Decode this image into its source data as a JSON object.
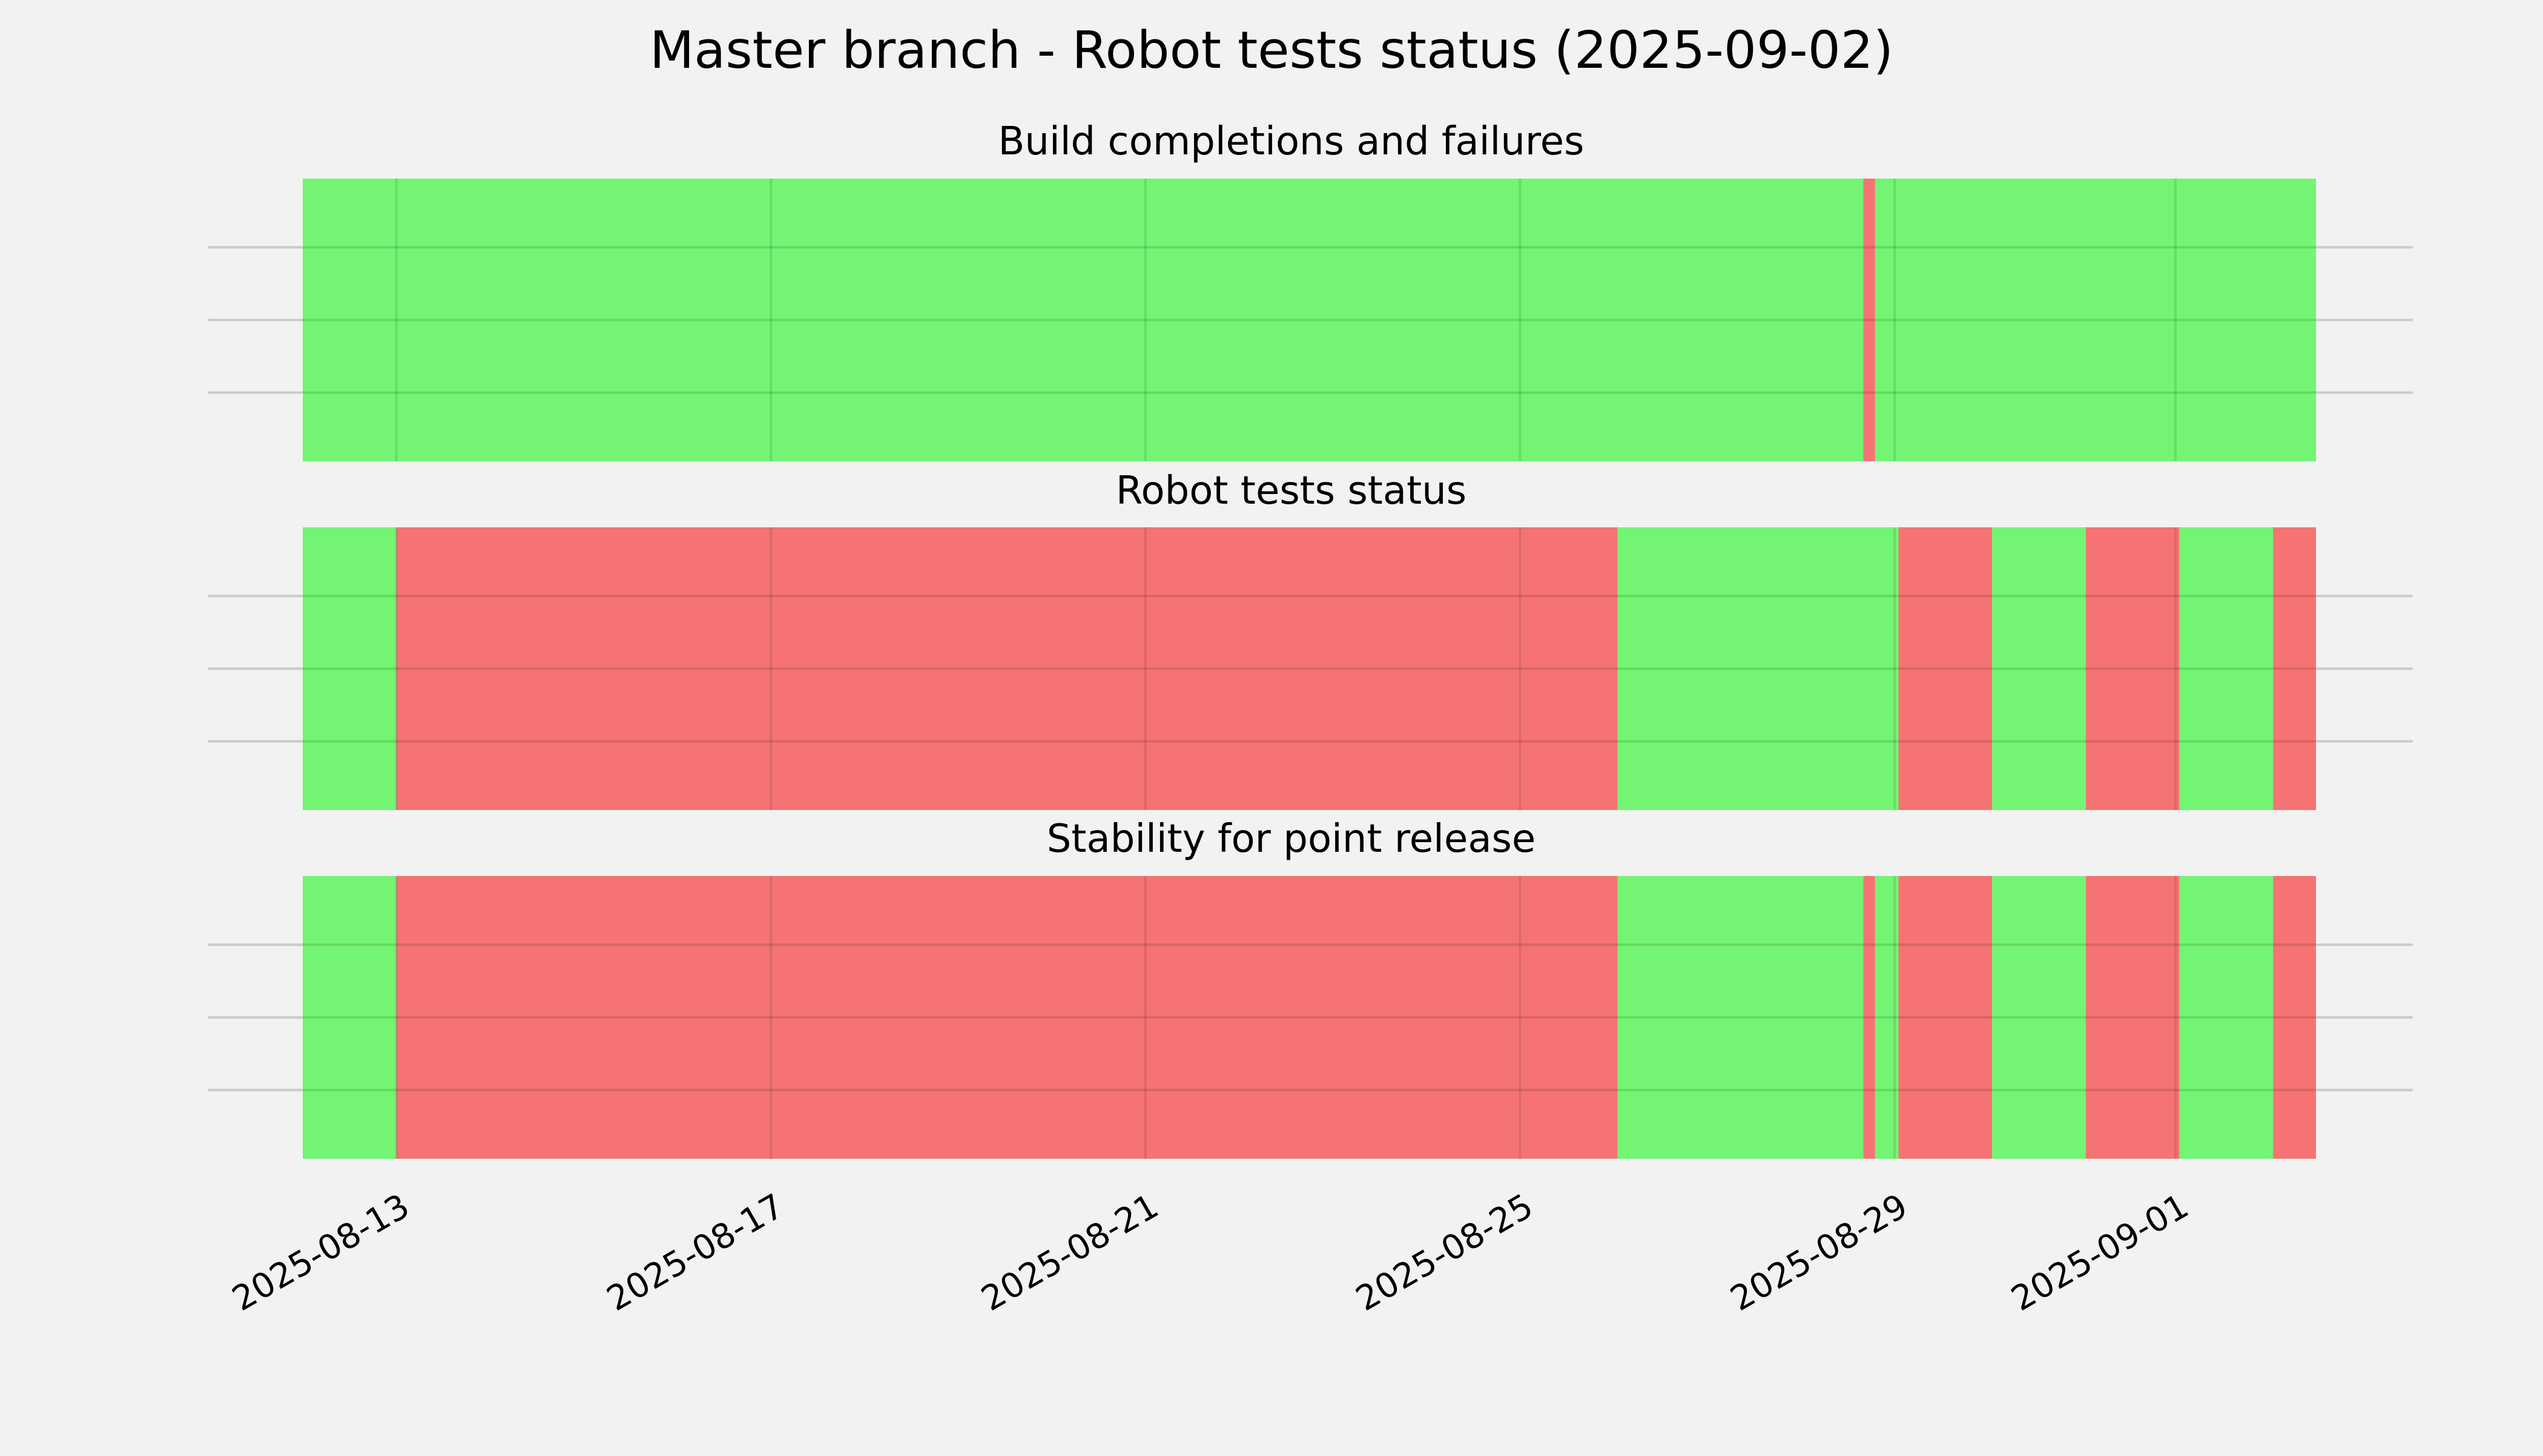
{
  "chart_data": {
    "type": "timeline",
    "title": "Master branch - Robot tests status (2025-09-02)",
    "colors": {
      "pass": "#73f573",
      "fail": "#f57373",
      "background": "#f2f2f2",
      "grid": "#cbcbcb"
    },
    "x_axis": {
      "range": [
        "2025-08-12 00:00",
        "2025-09-02 12:00"
      ],
      "ticks": [
        "2025-08-13",
        "2025-08-17",
        "2025-08-21",
        "2025-08-25",
        "2025-08-29",
        "2025-09-01"
      ],
      "tick_rotation": 30,
      "grid": true
    },
    "y_axis": {
      "ticks_visible": false,
      "grid": true
    },
    "panels": [
      {
        "title": "Build completions and failures",
        "segments": [
          {
            "start": "2025-08-12 00:00",
            "end": "2025-08-28 16:00",
            "status": "pass"
          },
          {
            "start": "2025-08-28 16:00",
            "end": "2025-08-28 19:00",
            "status": "fail"
          },
          {
            "start": "2025-08-28 19:00",
            "end": "2025-09-02 12:00",
            "status": "pass"
          }
        ]
      },
      {
        "title": "Robot tests status",
        "segments": [
          {
            "start": "2025-08-12 00:00",
            "end": "2025-08-13 00:00",
            "status": "pass"
          },
          {
            "start": "2025-08-13 00:00",
            "end": "2025-08-26 01:00",
            "status": "fail"
          },
          {
            "start": "2025-08-26 01:00",
            "end": "2025-08-29 01:00",
            "status": "pass"
          },
          {
            "start": "2025-08-29 01:00",
            "end": "2025-08-30 01:00",
            "status": "fail"
          },
          {
            "start": "2025-08-30 01:00",
            "end": "2025-08-31 01:00",
            "status": "pass"
          },
          {
            "start": "2025-08-31 01:00",
            "end": "2025-09-01 01:00",
            "status": "fail"
          },
          {
            "start": "2025-09-01 01:00",
            "end": "2025-09-02 01:00",
            "status": "pass"
          },
          {
            "start": "2025-09-02 01:00",
            "end": "2025-09-02 12:00",
            "status": "fail"
          }
        ]
      },
      {
        "title": "Stability for point release",
        "segments": [
          {
            "start": "2025-08-12 00:00",
            "end": "2025-08-13 00:00",
            "status": "pass"
          },
          {
            "start": "2025-08-13 00:00",
            "end": "2025-08-26 01:00",
            "status": "fail"
          },
          {
            "start": "2025-08-26 01:00",
            "end": "2025-08-28 16:00",
            "status": "pass"
          },
          {
            "start": "2025-08-28 16:00",
            "end": "2025-08-28 19:00",
            "status": "fail"
          },
          {
            "start": "2025-08-28 19:00",
            "end": "2025-08-29 01:00",
            "status": "pass"
          },
          {
            "start": "2025-08-29 01:00",
            "end": "2025-08-30 01:00",
            "status": "fail"
          },
          {
            "start": "2025-08-30 01:00",
            "end": "2025-08-31 01:00",
            "status": "pass"
          },
          {
            "start": "2025-08-31 01:00",
            "end": "2025-09-01 01:00",
            "status": "fail"
          },
          {
            "start": "2025-09-01 01:00",
            "end": "2025-09-02 01:00",
            "status": "pass"
          },
          {
            "start": "2025-09-02 01:00",
            "end": "2025-09-02 12:00",
            "status": "fail"
          }
        ]
      }
    ]
  }
}
